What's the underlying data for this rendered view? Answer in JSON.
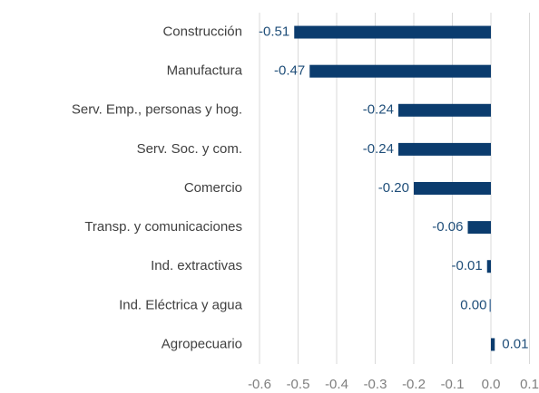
{
  "chart_data": {
    "type": "bar",
    "orientation": "horizontal",
    "categories": [
      "Construcción",
      "Manufactura",
      "Serv. Emp., personas y hog.",
      "Serv. Soc. y com.",
      "Comercio",
      "Transp. y comunicaciones",
      "Ind. extractivas",
      "Ind. Eléctrica y agua",
      "Agropecuario"
    ],
    "values": [
      -0.51,
      -0.47,
      -0.24,
      -0.24,
      -0.2,
      -0.06,
      -0.01,
      0.0,
      0.01
    ],
    "value_labels": [
      "-0.51",
      "-0.47",
      "-0.24",
      "-0.24",
      "-0.20",
      "-0.06",
      "-0.01",
      "0.00",
      "0.01"
    ],
    "color": "#0b3c6e",
    "xlim": [
      -0.6,
      0.1
    ],
    "xticks": [
      -0.6,
      -0.5,
      -0.4,
      -0.3,
      -0.2,
      -0.1,
      {
        "value": 0,
        "label": "0.0"
      },
      0.1
    ],
    "grid": true
  }
}
